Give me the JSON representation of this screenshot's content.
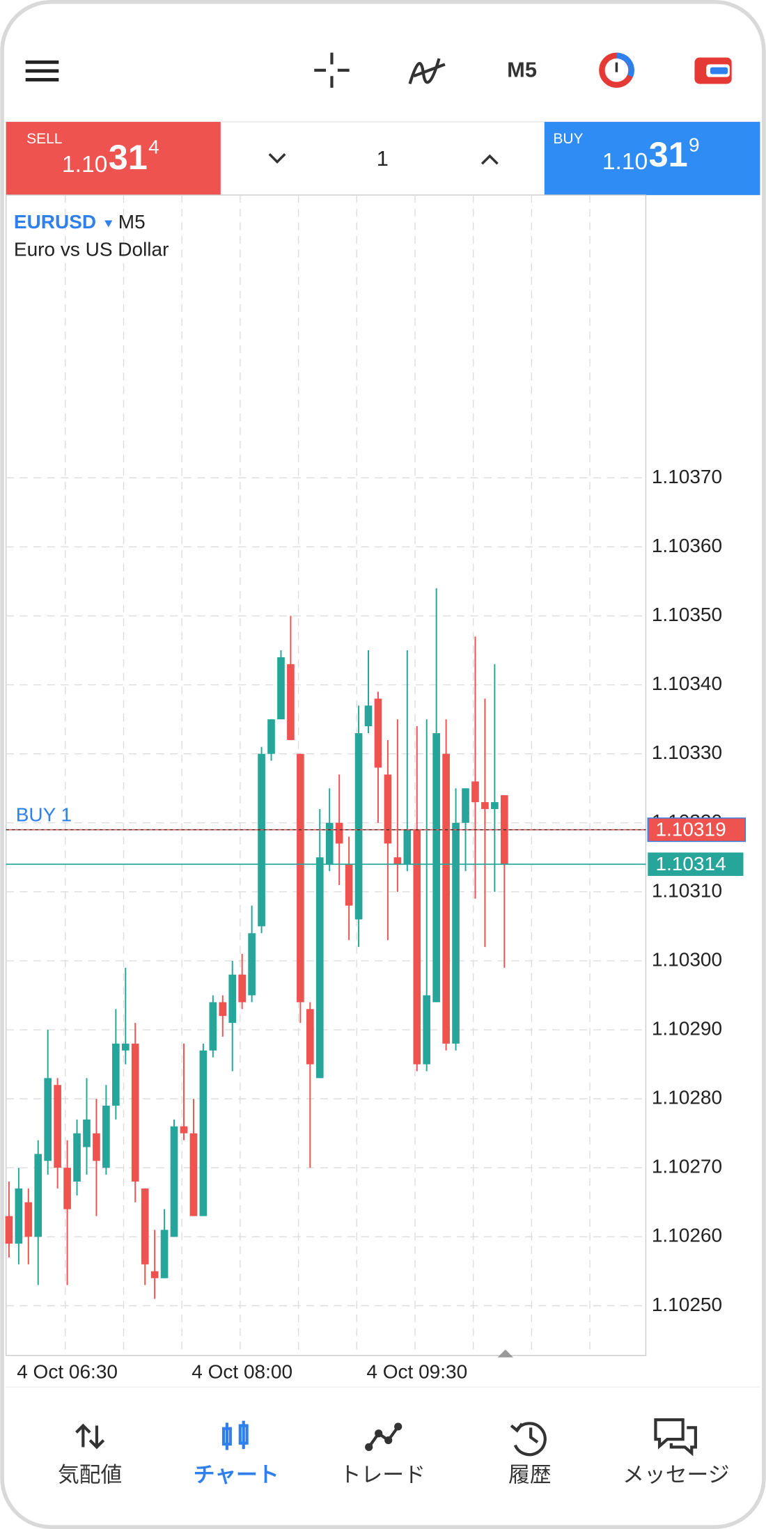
{
  "toolbar": {
    "timeframe": "M5"
  },
  "trade_panel": {
    "sell": {
      "label": "SELL",
      "price_main": "1.10",
      "price_big": "31",
      "price_small": "4"
    },
    "lot": "1",
    "buy": {
      "label": "BUY",
      "price_main": "1.10",
      "price_big": "31",
      "price_small": "9"
    }
  },
  "chart": {
    "type": "candlestick",
    "symbol": "EURUSD",
    "timeframe": "M5",
    "description": "Euro vs US Dollar",
    "categories": [
      null,
      null,
      null,
      null,
      null,
      null,
      "4 Oct 06:30",
      null,
      null,
      null,
      null,
      null,
      null,
      null,
      null,
      null,
      null,
      null,
      null,
      null,
      null,
      null,
      null,
      null,
      "4 Oct 08:00",
      null,
      null,
      null,
      null,
      null,
      null,
      null,
      null,
      null,
      null,
      null,
      null,
      null,
      null,
      null,
      null,
      null,
      "4 Oct 09:30",
      null,
      null,
      null,
      null,
      null,
      null,
      null,
      null,
      null
    ],
    "open": [
      1.10263,
      1.10259,
      1.10265,
      1.1026,
      1.10271,
      1.10282,
      1.1027,
      1.10268,
      1.10273,
      1.10275,
      1.1027,
      1.10279,
      1.10287,
      1.10288,
      1.10267,
      1.10255,
      1.10254,
      1.1026,
      1.10276,
      1.10275,
      1.10263,
      1.10287,
      1.10294,
      1.10291,
      1.10298,
      1.10295,
      1.10305,
      1.1033,
      1.10335,
      1.10343,
      1.1033,
      1.10293,
      1.10283,
      1.10314,
      1.1032,
      1.10314,
      1.10306,
      1.10334,
      1.10338,
      1.10327,
      1.10315,
      1.10314,
      1.10319,
      1.10285,
      1.10294,
      1.1033,
      1.10288,
      1.1032,
      1.10326,
      1.10323,
      1.10322,
      1.10324
    ],
    "close": [
      1.10259,
      1.10267,
      1.1026,
      1.10272,
      1.10283,
      1.1027,
      1.10264,
      1.10275,
      1.10277,
      1.10271,
      1.10279,
      1.10288,
      1.10288,
      1.10268,
      1.10256,
      1.10254,
      1.10261,
      1.10276,
      1.10275,
      1.10263,
      1.10287,
      1.10294,
      1.10292,
      1.10298,
      1.10294,
      1.10304,
      1.1033,
      1.10335,
      1.10344,
      1.10332,
      1.10294,
      1.10285,
      1.10315,
      1.1032,
      1.10317,
      1.10308,
      1.10333,
      1.10337,
      1.10328,
      1.10317,
      1.10314,
      1.10319,
      1.10285,
      1.10295,
      1.10333,
      1.10288,
      1.1032,
      1.10325,
      1.10323,
      1.10322,
      1.10323,
      1.10314
    ],
    "high": [
      1.10268,
      1.1027,
      1.10267,
      1.10274,
      1.1029,
      1.10283,
      1.10274,
      1.10277,
      1.10283,
      1.1028,
      1.10282,
      1.10293,
      1.10299,
      1.10291,
      1.10267,
      1.10261,
      1.10264,
      1.10277,
      1.10288,
      1.1028,
      1.10288,
      1.10295,
      1.10295,
      1.103,
      1.10301,
      1.10308,
      1.10331,
      1.10335,
      1.10345,
      1.1035,
      1.1033,
      1.10294,
      1.10322,
      1.10325,
      1.10327,
      1.10318,
      1.10337,
      1.10345,
      1.10339,
      1.10332,
      1.10335,
      1.10345,
      1.10334,
      1.10335,
      1.10354,
      1.10335,
      1.10325,
      1.10325,
      1.10347,
      1.10338,
      1.10343,
      1.10324
    ],
    "low": [
      1.10257,
      1.10256,
      1.10256,
      1.10253,
      1.10269,
      1.10267,
      1.10253,
      1.10266,
      1.10269,
      1.10263,
      1.10269,
      1.10277,
      1.10285,
      1.10265,
      1.10253,
      1.10251,
      1.10254,
      1.1026,
      1.10274,
      1.10263,
      1.10263,
      1.10286,
      1.10289,
      1.10284,
      1.10293,
      1.10294,
      1.10304,
      1.10329,
      1.10335,
      1.10332,
      1.10291,
      1.1027,
      1.10283,
      1.10313,
      1.10311,
      1.10303,
      1.10302,
      1.10333,
      1.1032,
      1.10303,
      1.1031,
      1.10313,
      1.10284,
      1.10284,
      1.10294,
      1.10287,
      1.10287,
      1.10313,
      1.10309,
      1.10302,
      1.1031,
      1.10299
    ],
    "up_color": "#26a69a",
    "down_color": "#ef5350",
    "ylim": [
      1.102428,
      1.10411
    ],
    "yticks": [
      {
        "value": 1.1025,
        "label": "1.10250"
      },
      {
        "value": 1.1026,
        "label": "1.10260"
      },
      {
        "value": 1.1027,
        "label": "1.10270"
      },
      {
        "value": 1.1028,
        "label": "1.10280"
      },
      {
        "value": 1.1029,
        "label": "1.10290"
      },
      {
        "value": 1.103,
        "label": "1.10300"
      },
      {
        "value": 1.1031,
        "label": "1.10310"
      },
      {
        "value": 1.1032,
        "label": "1.10320"
      },
      {
        "value": 1.1033,
        "label": "1.10330"
      },
      {
        "value": 1.1034,
        "label": "1.10340"
      },
      {
        "value": 1.1035,
        "label": "1.10350"
      },
      {
        "value": 1.1036,
        "label": "1.10360"
      },
      {
        "value": 1.1037,
        "label": "1.10370"
      }
    ],
    "grid": true,
    "position_line": {
      "label": "BUY 1",
      "value": 1.10319,
      "color": "#ef5350"
    },
    "bid_line": {
      "value": 1.10314,
      "color": "#26a69a"
    }
  },
  "nav": {
    "items": [
      "気配値",
      "チャート",
      "トレード",
      "履歴",
      "メッセージ"
    ],
    "active": 1
  }
}
